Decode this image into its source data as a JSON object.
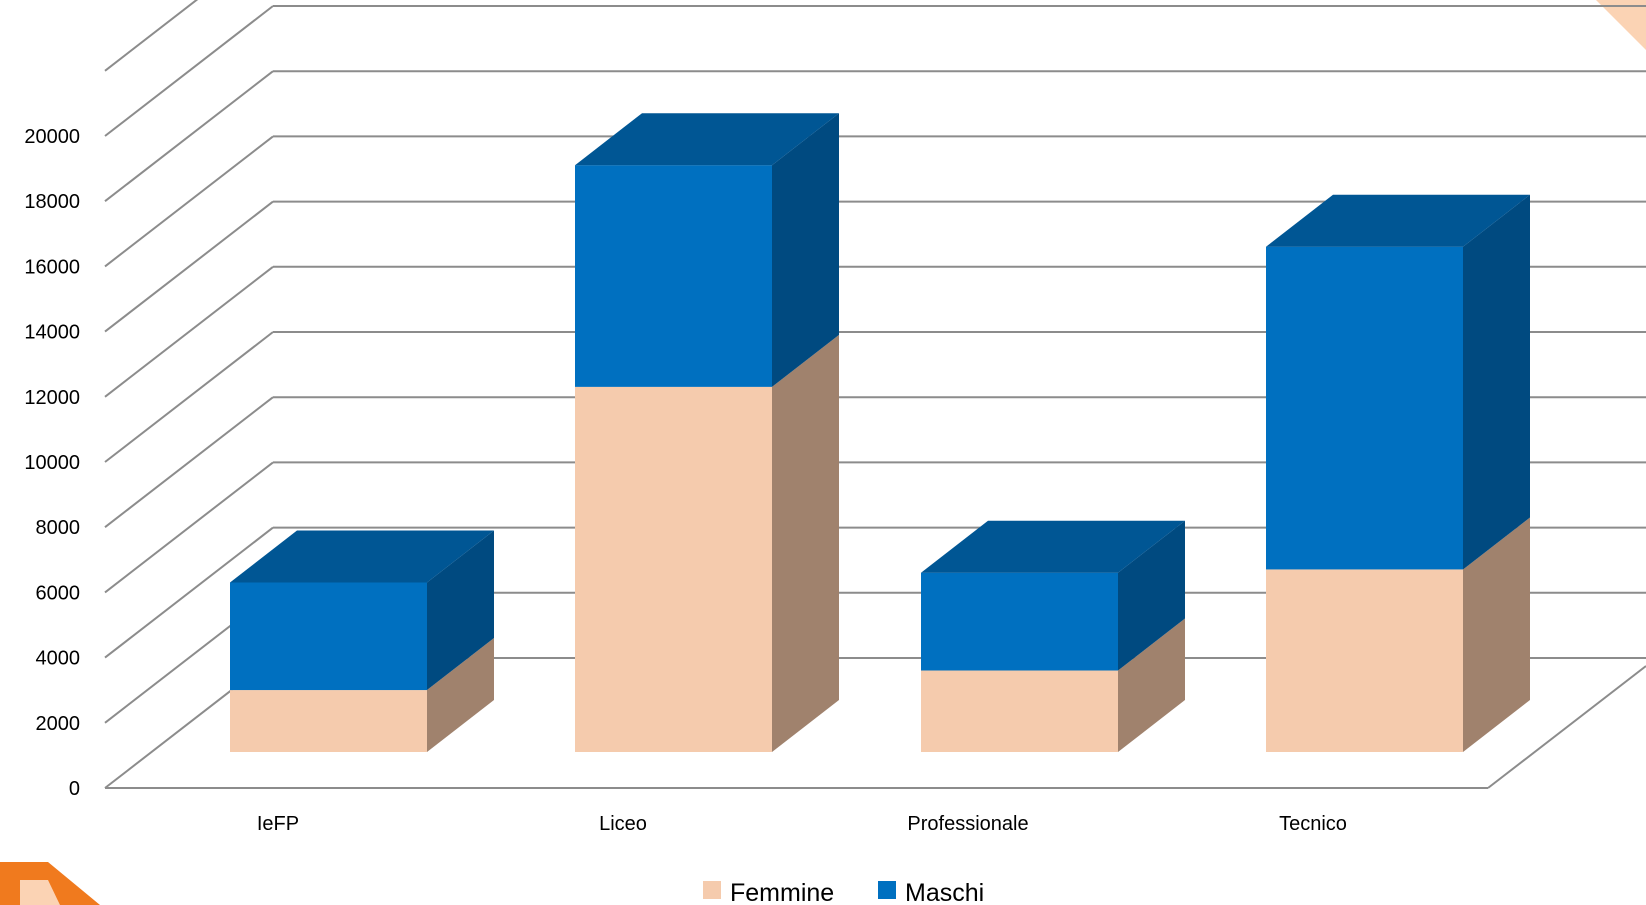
{
  "chart_data": {
    "type": "bar",
    "stacked": true,
    "three_d": true,
    "categories": [
      "IeFP",
      "Liceo",
      "Professionale",
      "Tecnico"
    ],
    "series": [
      {
        "name": "Femmine",
        "values": [
          1900,
          11200,
          2500,
          5600
        ]
      },
      {
        "name": "Maschi",
        "values": [
          3300,
          6800,
          3000,
          9900
        ]
      }
    ],
    "y_ticks": [
      "0",
      "2000",
      "4000",
      "6000",
      "8000",
      "10000",
      "12000",
      "14000",
      "16000",
      "18000",
      "20000"
    ],
    "ylim": [
      0,
      20000
    ],
    "grid": true,
    "legend": {
      "placement": "bottom",
      "entries": [
        "Femmine",
        "Maschi"
      ]
    }
  },
  "colors": {
    "femmine_front": "#f5cbad",
    "femmine_side": "#a0826d",
    "femmine_top": "#e0b89a",
    "maschi_front": "#0070c0",
    "maschi_side": "#004a80",
    "maschi_top": "#005694",
    "grid": "#8c8c8c",
    "accent_orange": "#f07a1e",
    "accent_peach": "#fbd3b4"
  }
}
